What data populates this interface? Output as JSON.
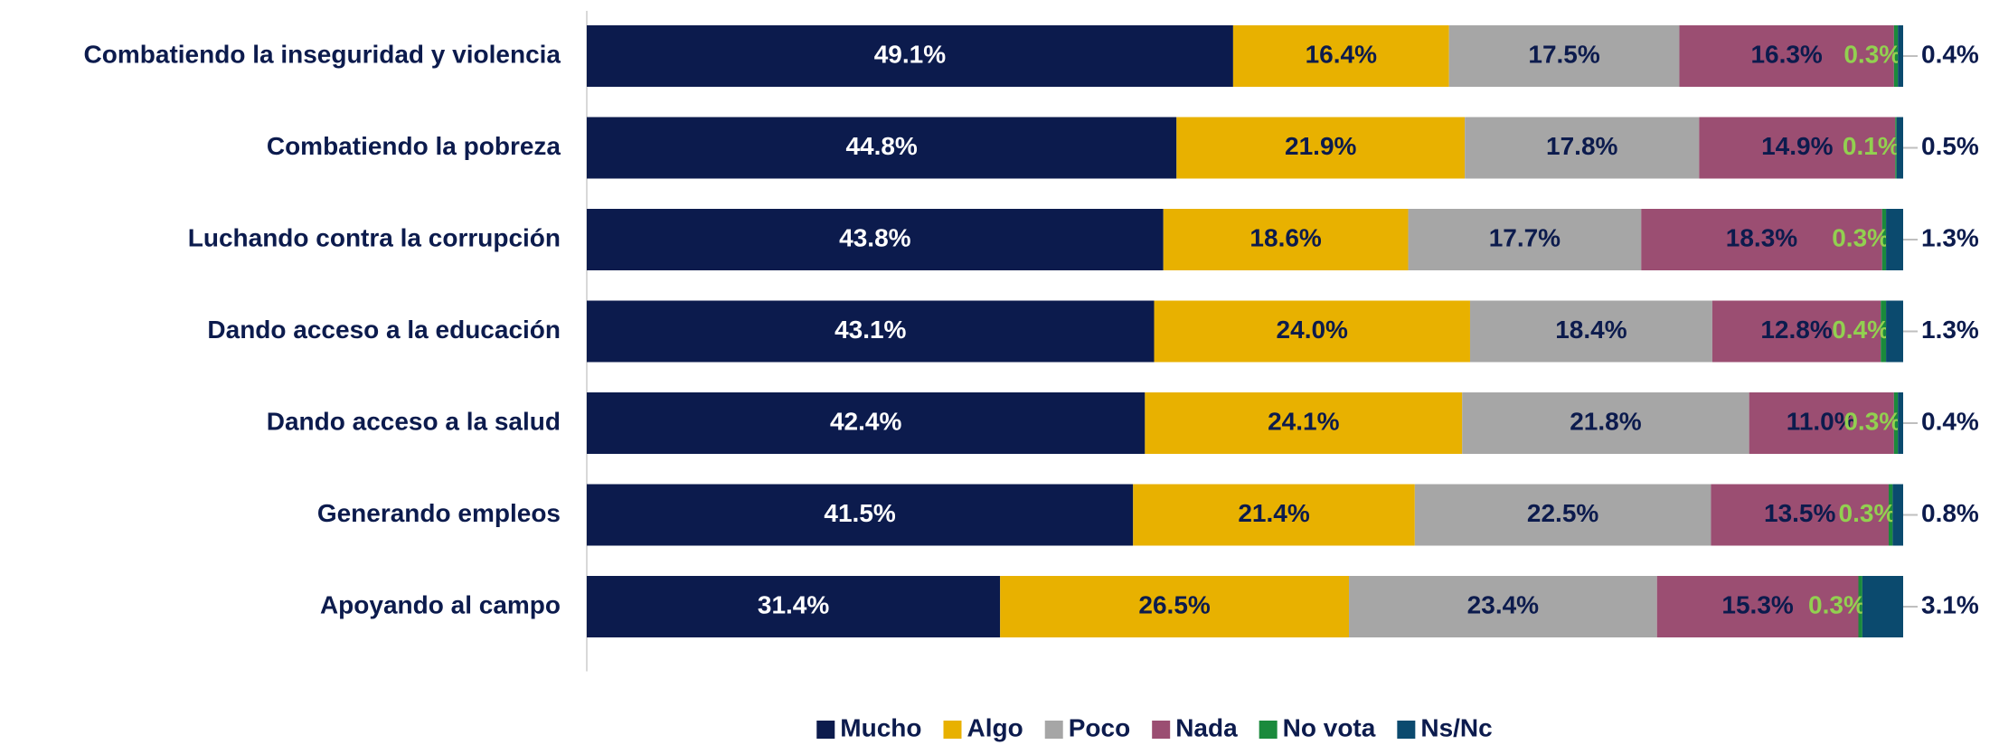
{
  "chart_data": {
    "type": "stacked_barh",
    "categories": [
      "Combatiendo la inseguridad y violencia",
      "Combatiendo la pobreza",
      "Luchando contra la corrupción",
      "Dando acceso a la educación",
      "Dando acceso a la salud",
      "Generando empleos",
      "Apoyando al campo"
    ],
    "xlim": [
      0,
      100
    ],
    "legend": "bottom",
    "series": [
      {
        "name": "Mucho",
        "color": "#0c1b4d",
        "label_color": "#ffffff",
        "values": [
          49.1,
          44.8,
          43.8,
          43.1,
          42.4,
          41.5,
          31.4
        ],
        "value_labels": [
          "49.1%",
          "44.8%",
          "43.8%",
          "43.1%",
          "42.4%",
          "41.5%",
          "31.4%"
        ]
      },
      {
        "name": "Algo",
        "color": "#e8b100",
        "label_color": "#0c1b4d",
        "values": [
          16.4,
          21.9,
          18.6,
          24.0,
          24.1,
          21.4,
          26.5
        ],
        "value_labels": [
          "16.4%",
          "21.9%",
          "18.6%",
          "24.0%",
          "24.1%",
          "21.4%",
          "26.5%"
        ]
      },
      {
        "name": "Poco",
        "color": "#a6a6a6",
        "label_color": "#0c1b4d",
        "values": [
          17.5,
          17.8,
          17.7,
          18.4,
          21.8,
          22.5,
          23.4
        ],
        "value_labels": [
          "17.5%",
          "17.8%",
          "17.7%",
          "18.4%",
          "21.8%",
          "22.5%",
          "23.4%"
        ]
      },
      {
        "name": "Nada",
        "color": "#9b4e72",
        "label_color": "#0c1b4d",
        "values": [
          16.3,
          14.9,
          18.3,
          12.8,
          11.0,
          13.5,
          15.3
        ],
        "value_labels": [
          "16.3%",
          "14.9%",
          "18.3%",
          "12.8%",
          "11.0%",
          "13.5%",
          "15.3%"
        ]
      },
      {
        "name": "No vota",
        "color": "#1a8a3c",
        "label_color": "#92d050",
        "values": [
          0.3,
          0.1,
          0.3,
          0.4,
          0.3,
          0.3,
          0.3
        ],
        "value_labels": [
          "0.3%",
          "0.1%",
          "0.3%",
          "0.4%",
          "0.3%",
          "0.3%",
          "0.3%"
        ]
      },
      {
        "name": "Ns/Nc",
        "color": "#0b4a6e",
        "label_color": "#0c1b4d",
        "values": [
          0.4,
          0.5,
          1.3,
          1.3,
          0.4,
          0.8,
          3.1
        ],
        "value_labels": [
          "0.4%",
          "0.5%",
          "1.3%",
          "1.3%",
          "0.4%",
          "0.8%",
          "3.1%"
        ]
      }
    ]
  }
}
